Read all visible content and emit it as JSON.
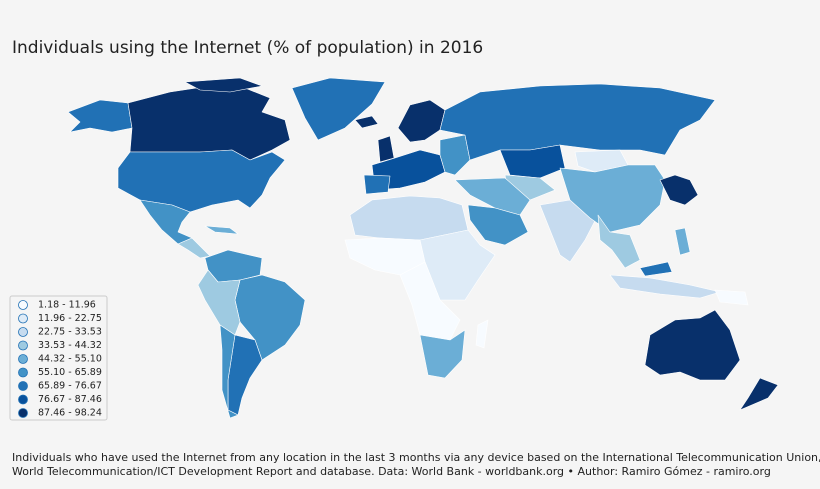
{
  "title": "Individuals using the Internet (% of population) in 2016",
  "legend": {
    "items": [
      {
        "label": "1.18 - 11.96",
        "color": "#f7fbff"
      },
      {
        "label": "11.96 - 22.75",
        "color": "#deebf7"
      },
      {
        "label": "22.75 - 33.53",
        "color": "#c6dbef"
      },
      {
        "label": "33.53 - 44.32",
        "color": "#9ecae1"
      },
      {
        "label": "44.32 - 55.10",
        "color": "#6baed6"
      },
      {
        "label": "55.10 - 65.89",
        "color": "#4292c6"
      },
      {
        "label": "65.89 - 76.67",
        "color": "#2171b5"
      },
      {
        "label": "76.67 - 87.46",
        "color": "#08519c"
      },
      {
        "label": "87.46 - 98.24",
        "color": "#08306b"
      }
    ]
  },
  "footnote": [
    "Individuals who have used the Internet from any location in the last 3 months via any device based on the International Telecommunication Union,",
    "World Telecommunication/ICT Development Report and database. Data: World Bank - worldbank.org • Author: Ramiro Gómez - ramiro.org"
  ]
}
